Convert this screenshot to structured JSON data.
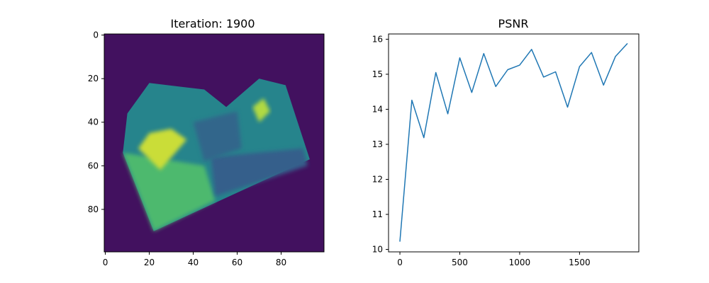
{
  "chart_data": [
    {
      "type": "heatmap",
      "title": "Iteration: 1900",
      "colormap": "viridis",
      "x_ticks": [
        "0",
        "20",
        "40",
        "60",
        "80"
      ],
      "y_ticks": [
        "0",
        "20",
        "40",
        "60",
        "80"
      ],
      "xlim": [
        -0.5,
        99.5
      ],
      "ylim": [
        99.5,
        -0.5
      ],
      "image_size": [
        100,
        100
      ],
      "regions": [
        {
          "name": "background",
          "intensity": 0.05
        },
        {
          "name": "object-body",
          "polygon": [
            [
              8,
              54
            ],
            [
              22,
              90
            ],
            [
              93,
              57
            ],
            [
              82,
              23
            ],
            [
              70,
              20
            ],
            [
              55,
              33
            ],
            [
              45,
              25
            ],
            [
              20,
              22
            ],
            [
              10,
              36
            ]
          ],
          "intensity": 0.45
        },
        {
          "name": "left-face",
          "polygon": [
            [
              8,
              54
            ],
            [
              22,
              90
            ],
            [
              50,
              76
            ],
            [
              45,
              60
            ]
          ],
          "intensity": 0.68
        },
        {
          "name": "bright-left-patch",
          "polygon": [
            [
              15,
              52
            ],
            [
              25,
              62
            ],
            [
              37,
              48
            ],
            [
              30,
              43
            ],
            [
              20,
              45
            ]
          ],
          "intensity": 0.92
        },
        {
          "name": "bright-top-right",
          "polygon": [
            [
              67,
              33
            ],
            [
              70,
              40
            ],
            [
              75,
              35
            ],
            [
              72,
              29
            ]
          ],
          "intensity": 0.88
        },
        {
          "name": "dark-band",
          "polygon": [
            [
              48,
              56
            ],
            [
              90,
              52
            ],
            [
              92,
              60
            ],
            [
              50,
              74
            ]
          ],
          "intensity": 0.3
        },
        {
          "name": "mid-shadow",
          "polygon": [
            [
              40,
              40
            ],
            [
              60,
              35
            ],
            [
              62,
              52
            ],
            [
              45,
              58
            ]
          ],
          "intensity": 0.33
        }
      ]
    },
    {
      "type": "line",
      "title": "PSNR",
      "x_ticks": [
        "0",
        "500",
        "1000",
        "1500"
      ],
      "y_ticks": [
        "10",
        "11",
        "12",
        "13",
        "14",
        "15",
        "16"
      ],
      "xlim": [
        -95,
        1995
      ],
      "ylim": [
        9.93,
        16.15
      ],
      "series": [
        {
          "color": "#1f77b4",
          "x": [
            0,
            100,
            200,
            300,
            400,
            500,
            600,
            700,
            800,
            900,
            1000,
            1100,
            1200,
            1300,
            1400,
            1500,
            1600,
            1700,
            1800,
            1900
          ],
          "y": [
            10.22,
            14.26,
            13.19,
            15.05,
            13.87,
            15.47,
            14.48,
            15.59,
            14.65,
            15.13,
            15.26,
            15.71,
            14.92,
            15.07,
            14.06,
            15.22,
            15.62,
            14.69,
            15.51,
            15.88
          ]
        }
      ]
    }
  ]
}
